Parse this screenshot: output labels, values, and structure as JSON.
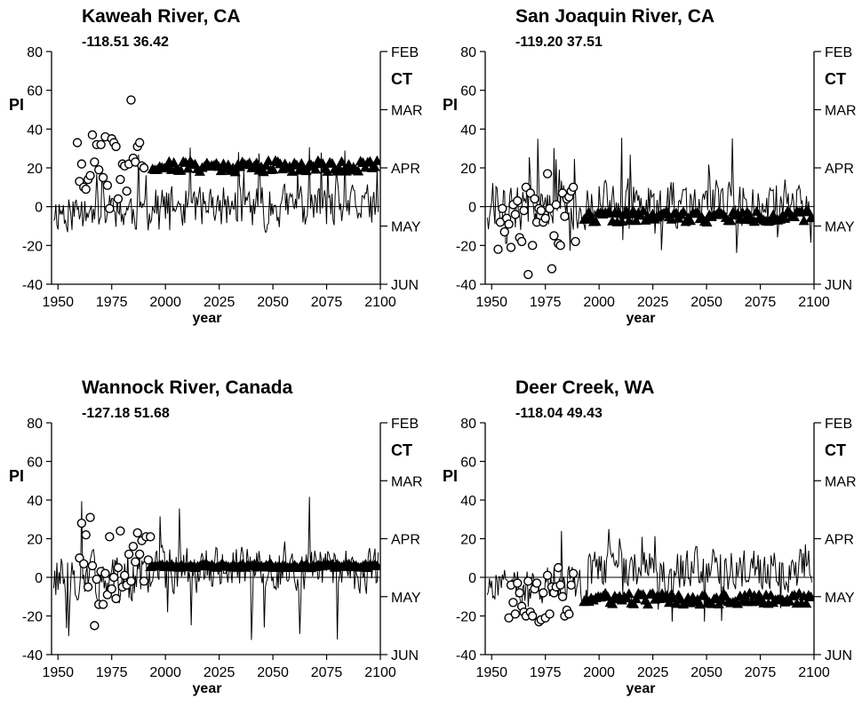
{
  "chart_data": [
    {
      "type": "line",
      "title": "Kaweah River, CA",
      "subtitle": "-118.51  36.42",
      "xlabel": "year",
      "ylabel": "PI",
      "y2label": "CT",
      "xlim": [
        1947,
        2100
      ],
      "ylim": [
        -40,
        80
      ],
      "xticks": [
        "1950",
        "1975",
        "2000",
        "2025",
        "2050",
        "2075",
        "2100"
      ],
      "yticks": [
        "80",
        "60",
        "40",
        "20",
        "0",
        "-20",
        "-40"
      ],
      "y2ticks": [
        "FEB",
        "MAR",
        "APR",
        "MAY",
        "JUN"
      ],
      "series": [
        {
          "kind": "line",
          "seed": 11,
          "start": 1948,
          "end": 2099,
          "early_mean": -2,
          "late_mean": 0,
          "amp": 10,
          "spike_max": 32,
          "spike_min": -18
        },
        {
          "kind": "circles",
          "points": [
            [
              1959,
              33
            ],
            [
              1960,
              13
            ],
            [
              1961,
              22
            ],
            [
              1962,
              10
            ],
            [
              1963,
              9
            ],
            [
              1964,
              14
            ],
            [
              1965,
              16
            ],
            [
              1966,
              37
            ],
            [
              1967,
              23
            ],
            [
              1968,
              32
            ],
            [
              1969,
              19
            ],
            [
              1970,
              32
            ],
            [
              1971,
              15
            ],
            [
              1972,
              36
            ],
            [
              1973,
              11
            ],
            [
              1974,
              -1
            ],
            [
              1975,
              35
            ],
            [
              1976,
              33
            ],
            [
              1977,
              31
            ],
            [
              1978,
              4
            ],
            [
              1979,
              14
            ],
            [
              1980,
              22
            ],
            [
              1981,
              21
            ],
            [
              1982,
              8
            ],
            [
              1983,
              22
            ],
            [
              1984,
              55
            ],
            [
              1985,
              25
            ],
            [
              1986,
              23
            ],
            [
              1987,
              31
            ],
            [
              1988,
              33
            ],
            [
              1989,
              21
            ],
            [
              1990,
              20
            ]
          ]
        },
        {
          "kind": "triangles",
          "seed": 21,
          "start": 1994,
          "end": 2099,
          "mean": 21,
          "spread": 3
        }
      ]
    },
    {
      "type": "line",
      "title": "San Joaquin River, CA",
      "subtitle": "-119.20  37.51",
      "xlabel": "year",
      "ylabel": "PI",
      "y2label": "CT",
      "xlim": [
        1947,
        2100
      ],
      "ylim": [
        -40,
        80
      ],
      "xticks": [
        "1950",
        "1975",
        "2000",
        "2025",
        "2050",
        "2075",
        "2100"
      ],
      "yticks": [
        "80",
        "60",
        "40",
        "20",
        "0",
        "-20",
        "-40"
      ],
      "y2ticks": [
        "FEB",
        "MAR",
        "APR",
        "MAY",
        "JUN"
      ],
      "series": [
        {
          "kind": "line",
          "seed": 12,
          "start": 1948,
          "end": 2099,
          "early_mean": 0,
          "late_mean": 2,
          "amp": 11,
          "spike_max": 36,
          "spike_min": -25
        },
        {
          "kind": "circles",
          "points": [
            [
              1953,
              -22
            ],
            [
              1954,
              -8
            ],
            [
              1955,
              -1
            ],
            [
              1956,
              -13
            ],
            [
              1957,
              -6
            ],
            [
              1958,
              -9
            ],
            [
              1959,
              -21
            ],
            [
              1960,
              1
            ],
            [
              1961,
              -4
            ],
            [
              1962,
              3
            ],
            [
              1963,
              -16
            ],
            [
              1964,
              -18
            ],
            [
              1965,
              -2
            ],
            [
              1966,
              10
            ],
            [
              1967,
              -35
            ],
            [
              1968,
              7
            ],
            [
              1969,
              -20
            ],
            [
              1970,
              4
            ],
            [
              1971,
              -8
            ],
            [
              1972,
              -1
            ],
            [
              1973,
              -2
            ],
            [
              1974,
              -8
            ],
            [
              1975,
              -6
            ],
            [
              1976,
              17
            ],
            [
              1977,
              -1
            ],
            [
              1978,
              -32
            ],
            [
              1979,
              -15
            ],
            [
              1980,
              1
            ],
            [
              1981,
              -19
            ],
            [
              1982,
              -20
            ],
            [
              1983,
              7
            ],
            [
              1984,
              -5
            ],
            [
              1985,
              4
            ],
            [
              1986,
              5
            ],
            [
              1987,
              8
            ],
            [
              1988,
              10
            ],
            [
              1989,
              -18
            ]
          ]
        },
        {
          "kind": "triangles",
          "seed": 22,
          "start": 1993,
          "end": 2099,
          "mean": -5,
          "spread": 3
        }
      ]
    },
    {
      "type": "line",
      "title": "Wannock River, Canada",
      "subtitle": "-127.18  51.68",
      "xlabel": "year",
      "ylabel": "PI",
      "y2label": "CT",
      "xlim": [
        1947,
        2100
      ],
      "ylim": [
        -40,
        80
      ],
      "xticks": [
        "1950",
        "1975",
        "2000",
        "2025",
        "2050",
        "2075",
        "2100"
      ],
      "yticks": [
        "80",
        "60",
        "40",
        "20",
        "0",
        "-20",
        "-40"
      ],
      "y2ticks": [
        "FEB",
        "MAR",
        "APR",
        "MAY",
        "JUN"
      ],
      "series": [
        {
          "kind": "line",
          "seed": 13,
          "start": 1948,
          "end": 2099,
          "early_mean": 0,
          "late_mean": 4,
          "amp": 11,
          "spike_max": 48,
          "spike_min": -34
        },
        {
          "kind": "circles",
          "points": [
            [
              1960,
              10
            ],
            [
              1961,
              28
            ],
            [
              1962,
              7
            ],
            [
              1963,
              22
            ],
            [
              1964,
              -5
            ],
            [
              1965,
              31
            ],
            [
              1966,
              6
            ],
            [
              1967,
              -25
            ],
            [
              1968,
              -1
            ],
            [
              1969,
              -14
            ],
            [
              1970,
              3
            ],
            [
              1971,
              -14
            ],
            [
              1972,
              2
            ],
            [
              1973,
              -9
            ],
            [
              1974,
              21
            ],
            [
              1975,
              -6
            ],
            [
              1976,
              0
            ],
            [
              1977,
              -11
            ],
            [
              1978,
              5
            ],
            [
              1979,
              24
            ],
            [
              1980,
              -5
            ],
            [
              1981,
              1
            ],
            [
              1982,
              -4
            ],
            [
              1983,
              12
            ],
            [
              1984,
              -2
            ],
            [
              1985,
              16
            ],
            [
              1986,
              8
            ],
            [
              1987,
              23
            ],
            [
              1988,
              12
            ],
            [
              1989,
              19
            ],
            [
              1990,
              -2
            ],
            [
              1991,
              21
            ],
            [
              1992,
              9
            ],
            [
              1993,
              21
            ]
          ]
        },
        {
          "kind": "triangles",
          "seed": 23,
          "start": 1993,
          "end": 2099,
          "mean": 6,
          "spread": 1
        }
      ]
    },
    {
      "type": "line",
      "title": "Deer Creek, WA",
      "subtitle": "-118.04  49.43",
      "xlabel": "year",
      "ylabel": "PI",
      "y2label": "CT",
      "xlim": [
        1947,
        2100
      ],
      "ylim": [
        -40,
        80
      ],
      "xticks": [
        "1950",
        "1975",
        "2000",
        "2025",
        "2050",
        "2075",
        "2100"
      ],
      "yticks": [
        "80",
        "60",
        "40",
        "20",
        "0",
        "-20",
        "-40"
      ],
      "y2ticks": [
        "FEB",
        "MAR",
        "APR",
        "MAY",
        "JUN"
      ],
      "series": [
        {
          "kind": "line",
          "seed": 14,
          "start": 1948,
          "end": 2099,
          "early_mean": -4,
          "late_mean": 4,
          "amp": 10,
          "spike_max": 31,
          "spike_min": -26
        },
        {
          "kind": "circles",
          "points": [
            [
              1958,
              -21
            ],
            [
              1959,
              -4
            ],
            [
              1960,
              -13
            ],
            [
              1961,
              -19
            ],
            [
              1962,
              -3
            ],
            [
              1963,
              -8
            ],
            [
              1964,
              -15
            ],
            [
              1965,
              -18
            ],
            [
              1966,
              -20
            ],
            [
              1967,
              -2
            ],
            [
              1968,
              -18
            ],
            [
              1969,
              -20
            ],
            [
              1970,
              -6
            ],
            [
              1971,
              -3
            ],
            [
              1972,
              -23
            ],
            [
              1973,
              -22
            ],
            [
              1974,
              -8
            ],
            [
              1975,
              -21
            ],
            [
              1976,
              1
            ],
            [
              1977,
              -19
            ],
            [
              1978,
              -5
            ],
            [
              1979,
              -8
            ],
            [
              1980,
              -5
            ],
            [
              1981,
              5
            ],
            [
              1982,
              -4
            ],
            [
              1983,
              -10
            ],
            [
              1984,
              -20
            ],
            [
              1985,
              -17
            ],
            [
              1986,
              -19
            ],
            [
              1987,
              -4
            ],
            [
              1988,
              2
            ]
          ]
        },
        {
          "kind": "triangles",
          "seed": 24,
          "start": 1993,
          "end": 2099,
          "mean": -11,
          "spread": 3
        }
      ]
    }
  ]
}
